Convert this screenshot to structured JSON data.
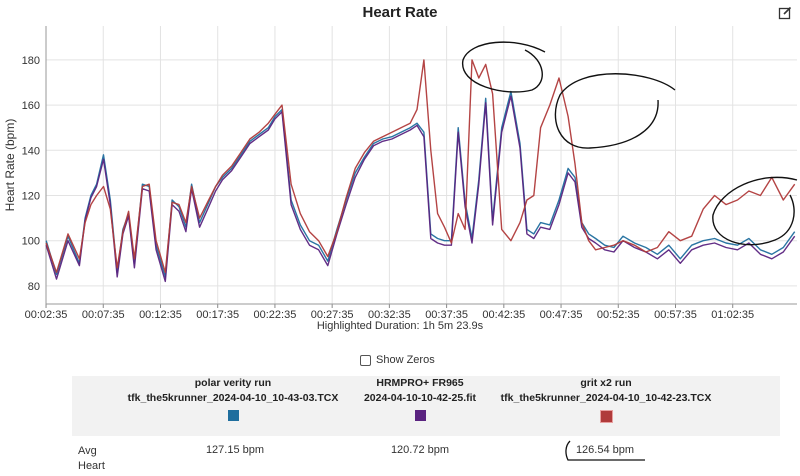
{
  "chart_data": {
    "type": "line",
    "title": "Heart Rate",
    "ylabel": "Heart Rate (bpm)",
    "xlabel": "",
    "ylim": [
      72,
      195
    ],
    "yticks": [
      80,
      100,
      120,
      140,
      160,
      180
    ],
    "xticks": [
      "00:02:35",
      "00:07:35",
      "00:12:35",
      "00:17:35",
      "00:22:35",
      "00:27:35",
      "00:32:35",
      "00:37:35",
      "00:42:35",
      "00:47:35",
      "00:52:35",
      "00:57:35",
      "01:02:35"
    ],
    "x_unit": "minutes",
    "xlim": [
      2.58,
      68.2
    ],
    "grid": true,
    "series": [
      {
        "name": "polar verity run",
        "color": "#1f6e9e",
        "x": [
          2.6,
          3.5,
          4.5,
          5.5,
          6.0,
          6.5,
          7.0,
          7.6,
          8.2,
          8.8,
          9.3,
          9.8,
          10.3,
          11.0,
          11.6,
          12.2,
          13.0,
          13.6,
          14.2,
          14.8,
          15.3,
          16.0,
          16.8,
          17.4,
          18.0,
          18.8,
          19.6,
          20.4,
          21.2,
          22.0,
          22.6,
          23.2,
          24.0,
          24.8,
          25.6,
          26.4,
          27.2,
          28.0,
          28.8,
          29.6,
          30.4,
          31.2,
          32.0,
          32.8,
          33.6,
          34.4,
          35.0,
          35.6,
          36.2,
          36.8,
          37.4,
          38.0,
          38.6,
          39.2,
          39.8,
          40.4,
          41.0,
          41.6,
          42.4,
          43.2,
          44.0,
          44.6,
          45.2,
          45.8,
          46.6,
          47.4,
          48.2,
          48.8,
          49.4,
          50.0,
          50.6,
          51.4,
          52.2,
          53.0,
          54.0,
          55.0,
          56.0,
          57.0,
          58.0,
          59.0,
          60.0,
          61.0,
          62.0,
          63.0,
          64.0,
          65.0,
          66.0,
          67.0,
          68.0
        ],
        "values": [
          100,
          85,
          102,
          90,
          110,
          120,
          125,
          138,
          118,
          86,
          105,
          112,
          90,
          125,
          124,
          98,
          84,
          118,
          115,
          106,
          125,
          108,
          117,
          124,
          128,
          132,
          138,
          144,
          147,
          150,
          155,
          158,
          118,
          107,
          100,
          98,
          91,
          105,
          118,
          130,
          137,
          143,
          145,
          146,
          148,
          150,
          152,
          148,
          103,
          101,
          100,
          100,
          150,
          117,
          101,
          127,
          163,
          109,
          150,
          166,
          143,
          105,
          103,
          108,
          107,
          118,
          132,
          128,
          108,
          103,
          101,
          98,
          97,
          102,
          99,
          97,
          94,
          98,
          92,
          98,
          100,
          101,
          99,
          98,
          101,
          96,
          94,
          97,
          104
        ]
      },
      {
        "name": "HRMPRO+ FR965",
        "color": "#5a2380",
        "x": [
          2.6,
          3.5,
          4.5,
          5.5,
          6.0,
          6.5,
          7.0,
          7.6,
          8.2,
          8.8,
          9.3,
          9.8,
          10.3,
          11.0,
          11.6,
          12.2,
          13.0,
          13.6,
          14.2,
          14.8,
          15.3,
          16.0,
          16.8,
          17.4,
          18.0,
          18.8,
          19.6,
          20.4,
          21.2,
          22.0,
          22.6,
          23.2,
          24.0,
          24.8,
          25.6,
          26.4,
          27.2,
          28.0,
          28.8,
          29.6,
          30.4,
          31.2,
          32.0,
          32.8,
          33.6,
          34.4,
          35.0,
          35.6,
          36.2,
          36.8,
          37.4,
          38.0,
          38.6,
          39.2,
          39.8,
          40.4,
          41.0,
          41.6,
          42.4,
          43.2,
          44.0,
          44.6,
          45.2,
          45.8,
          46.6,
          47.4,
          48.2,
          48.8,
          49.4,
          50.0,
          50.6,
          51.4,
          52.2,
          53.0,
          54.0,
          55.0,
          56.0,
          57.0,
          58.0,
          59.0,
          60.0,
          61.0,
          62.0,
          63.0,
          64.0,
          65.0,
          66.0,
          67.0,
          68.0
        ],
        "values": [
          98,
          83,
          100,
          89,
          109,
          119,
          124,
          136,
          116,
          84,
          103,
          111,
          88,
          123,
          122,
          96,
          82,
          116,
          113,
          104,
          123,
          106,
          115,
          122,
          127,
          131,
          137,
          143,
          146,
          149,
          154,
          157,
          116,
          105,
          98,
          96,
          89,
          103,
          116,
          128,
          136,
          142,
          144,
          145,
          147,
          149,
          151,
          146,
          101,
          99,
          98,
          98,
          148,
          115,
          99,
          125,
          161,
          107,
          148,
          164,
          141,
          103,
          101,
          106,
          105,
          116,
          130,
          126,
          106,
          101,
          99,
          96,
          95,
          100,
          97,
          95,
          92,
          96,
          90,
          96,
          98,
          99,
          97,
          96,
          99,
          94,
          92,
          95,
          102
        ]
      },
      {
        "name": "grit x2 run",
        "color": "#b03a3a",
        "x": [
          2.6,
          3.5,
          4.5,
          5.5,
          6.0,
          6.5,
          7.0,
          7.6,
          8.2,
          8.8,
          9.3,
          9.8,
          10.3,
          11.0,
          11.6,
          12.2,
          13.0,
          13.6,
          14.2,
          14.8,
          15.3,
          16.0,
          16.8,
          17.4,
          18.0,
          18.8,
          19.6,
          20.4,
          21.2,
          22.0,
          22.6,
          23.2,
          24.0,
          24.8,
          25.6,
          26.4,
          27.2,
          28.0,
          28.8,
          29.6,
          30.4,
          31.2,
          32.0,
          32.8,
          33.6,
          34.4,
          35.0,
          35.6,
          36.2,
          36.8,
          37.4,
          38.0,
          38.6,
          39.2,
          39.8,
          40.4,
          41.0,
          41.6,
          42.4,
          43.2,
          44.0,
          44.6,
          45.2,
          45.8,
          46.6,
          47.4,
          48.2,
          48.8,
          49.4,
          50.0,
          50.6,
          51.4,
          52.2,
          53.0,
          54.0,
          55.0,
          56.0,
          57.0,
          58.0,
          59.0,
          60.0,
          61.0,
          62.0,
          63.0,
          64.0,
          65.0,
          66.0,
          67.0,
          68.0
        ],
        "values": [
          99,
          86,
          103,
          92,
          108,
          116,
          120,
          124,
          114,
          88,
          104,
          113,
          92,
          124,
          125,
          100,
          86,
          117,
          116,
          108,
          124,
          110,
          118,
          124,
          129,
          133,
          139,
          145,
          148,
          152,
          156,
          160,
          125,
          112,
          104,
          100,
          93,
          104,
          119,
          132,
          139,
          144,
          146,
          148,
          150,
          152,
          158,
          180,
          140,
          112,
          106,
          99,
          112,
          105,
          180,
          172,
          178,
          165,
          105,
          100,
          108,
          118,
          120,
          150,
          160,
          172,
          155,
          134,
          108,
          100,
          96,
          97,
          98,
          100,
          98,
          95,
          97,
          104,
          100,
          102,
          114,
          120,
          116,
          118,
          122,
          120,
          128,
          118,
          125
        ]
      }
    ]
  },
  "summary": {
    "files": [
      {
        "name": "polar verity run",
        "file": "tfk_the5krunner_2024-04-10_10-43-03.TCX",
        "avg": "127.15 bpm"
      },
      {
        "name": "HRMPRO+ FR965",
        "file": "2024-04-10-10-42-25.fit",
        "avg": "120.72 bpm"
      },
      {
        "name": "grit x2 run",
        "file": "tfk_the5krunner_2024-04-10_10-42-23.TCX",
        "avg": "126.54 bpm"
      }
    ],
    "avg_label_1": "Avg",
    "avg_label_2": "Heart"
  },
  "highlight": "Highlighted Duration: 1h 5m 23.9s",
  "show_zeros_label": "Show Zeros",
  "colors": {
    "grid": "#e3e3e3",
    "annotation": "#111111"
  }
}
